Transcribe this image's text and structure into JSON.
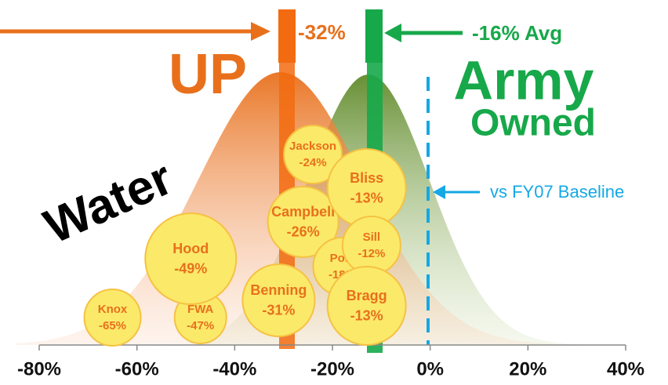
{
  "chart_data": {
    "type": "bubble",
    "points": [
      {
        "name": "Knox",
        "x": -65,
        "label": "-65%"
      },
      {
        "name": "FWA",
        "x": -47,
        "label": "-47%"
      },
      {
        "name": "Hood",
        "x": -49,
        "label": "-49%"
      },
      {
        "name": "Benning",
        "x": -31,
        "label": "-31%"
      },
      {
        "name": "Jackson",
        "x": -24,
        "label": "-24%"
      },
      {
        "name": "Campbell",
        "x": -26,
        "label": "-26%"
      },
      {
        "name": "Polk",
        "x": -18,
        "label": "-18%"
      },
      {
        "name": "Bliss",
        "x": -13,
        "label": "-13%"
      },
      {
        "name": "Sill",
        "x": -12,
        "label": "-12%"
      },
      {
        "name": "Bragg",
        "x": -13,
        "label": "-13%"
      }
    ],
    "color": "#fbe96a",
    "xlim": [
      -80,
      40
    ],
    "xticks": [
      {
        "value": -80,
        "label": "-80%"
      },
      {
        "value": -60,
        "label": "-60%"
      },
      {
        "value": -40,
        "label": "-40%"
      },
      {
        "value": -20,
        "label": "-20%"
      },
      {
        "value": 0,
        "label": "0%"
      },
      {
        "value": 20,
        "label": "20%"
      },
      {
        "value": 40,
        "label": "40%"
      }
    ],
    "annotations": {
      "up_marker": "-32%",
      "army_marker": "-16% Avg",
      "baseline": "vs FY07 Baseline",
      "up": "UP",
      "army": "Army",
      "owned": "Owned",
      "water": "Water"
    }
  }
}
